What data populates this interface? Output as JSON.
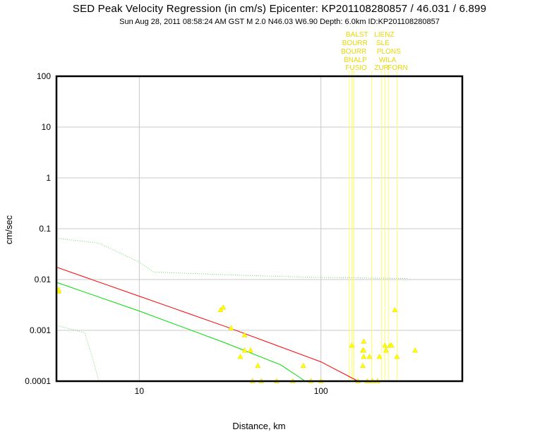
{
  "title": "SED Peak Velocity Regression (in cm/s) Epicenter: KP201108280857 / 46.031 / 6.899",
  "subtitle": "Sun Aug 28, 2011 08:58:24 AM GST   M 2.0   N46.03 W6.90   Depth: 6.0km   ID:KP201108280857",
  "chart_data": {
    "type": "scatter",
    "xlabel": "Distance, km",
    "ylabel": "cm/sec",
    "xscale": "log",
    "yscale": "log",
    "xlim": [
      3.5,
      600
    ],
    "ylim": [
      0.0001,
      100
    ],
    "grid": true,
    "x_ticks": [
      {
        "v": 10,
        "label": "10"
      },
      {
        "v": 100,
        "label": "100"
      }
    ],
    "y_ticks": [
      {
        "v": 100,
        "label": "100"
      },
      {
        "v": 10,
        "label": "10"
      },
      {
        "v": 1,
        "label": "1"
      },
      {
        "v": 0.1,
        "label": "0.1"
      },
      {
        "v": 0.01,
        "label": "0.01"
      },
      {
        "v": 0.001,
        "label": "0.001"
      },
      {
        "v": 0.0001,
        "label": "0.0001"
      }
    ],
    "colors": {
      "points": "#ffff00",
      "red_curve": "#ff0000",
      "green_curve": "#00dd00",
      "dotted": "#66dd66"
    },
    "points": [
      [
        3.6,
        0.0058
      ],
      [
        3.6,
        0.0063
      ],
      [
        28,
        0.0025
      ],
      [
        29,
        0.0028
      ],
      [
        32,
        0.0011
      ],
      [
        38,
        0.0008
      ],
      [
        38,
        0.0004
      ],
      [
        41,
        0.0004
      ],
      [
        36,
        0.0003
      ],
      [
        45,
        0.0002
      ],
      [
        80,
        0.0002
      ],
      [
        148,
        0.0005
      ],
      [
        172,
        0.0006
      ],
      [
        170,
        0.0004
      ],
      [
        172,
        0.0004
      ],
      [
        170,
        0.0002
      ],
      [
        172,
        0.0003
      ],
      [
        185,
        0.0003
      ],
      [
        210,
        0.0003
      ],
      [
        225,
        0.0005
      ],
      [
        228,
        0.0004
      ],
      [
        240,
        0.0005
      ],
      [
        245,
        0.0005
      ],
      [
        255,
        0.0025
      ],
      [
        262,
        0.0003
      ],
      [
        330,
        0.0004
      ],
      [
        42,
        0.0001
      ],
      [
        47,
        0.0001
      ],
      [
        57,
        0.0001
      ],
      [
        70,
        0.0001
      ],
      [
        88,
        0.0001
      ],
      [
        100,
        0.0001
      ],
      [
        160,
        0.0001
      ],
      [
        180,
        0.0001
      ],
      [
        192,
        0.0001
      ],
      [
        205,
        0.0001
      ]
    ],
    "curves": {
      "red": [
        [
          3.5,
          0.0175
        ],
        [
          10,
          0.0047
        ],
        [
          30,
          0.00118
        ],
        [
          100,
          0.00024
        ],
        [
          160,
          0.0001
        ]
      ],
      "green": [
        [
          3.5,
          0.0088
        ],
        [
          10,
          0.0024
        ],
        [
          30,
          0.00056
        ],
        [
          60,
          0.00021
        ],
        [
          82,
          0.0001
        ]
      ],
      "dotted_upper": [
        [
          3.5,
          0.065
        ],
        [
          6,
          0.052
        ],
        [
          10,
          0.022
        ],
        [
          12,
          0.014
        ],
        [
          40,
          0.012
        ],
        [
          100,
          0.011
        ],
        [
          300,
          0.0105
        ]
      ],
      "dotted_lower": [
        [
          3.5,
          0.00125
        ],
        [
          5,
          0.0009
        ],
        [
          5.5,
          0.0003
        ],
        [
          6,
          0.0001
        ]
      ]
    },
    "station_labels": [
      {
        "name": "BALST",
        "x": 150
      },
      {
        "name": "LIENZ",
        "x": 215
      },
      {
        "name": "BOURR",
        "x": 143
      },
      {
        "name": "SLE",
        "x": 220
      },
      {
        "name": "BOURR",
        "x": 141
      },
      {
        "name": "PLONS",
        "x": 222
      },
      {
        "name": "BNALP",
        "x": 146
      },
      {
        "name": "WILA",
        "x": 228
      },
      {
        "name": "FUSIO",
        "x": 149
      },
      {
        "name": "ZUR",
        "x": 215
      },
      {
        "name": "FORN",
        "x": 255
      }
    ],
    "station_lines_x": [
      143,
      148,
      152,
      190,
      215,
      225,
      235,
      262
    ]
  }
}
